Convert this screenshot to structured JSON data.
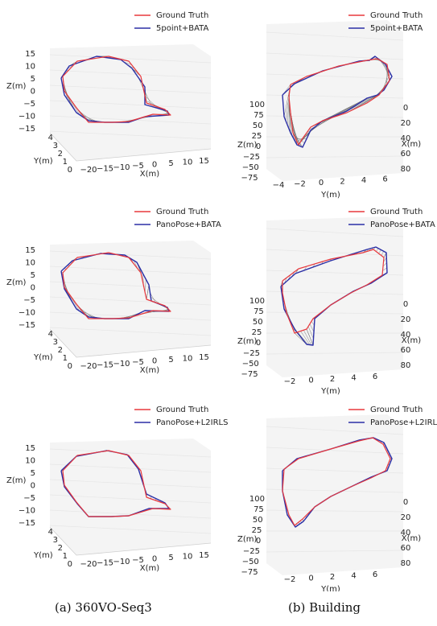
{
  "captions": {
    "left": "(a) 360VO-Seq3",
    "right": "(b) Building"
  },
  "colors": {
    "ground_truth": "#e8383d",
    "estimate": "#2b2fa6",
    "hatch": "#6e6e6e",
    "grid": "#e6e6e6",
    "pane": "#f4f4f4"
  },
  "chart_data": [
    {
      "type": "line",
      "view": "3d",
      "legend": [
        "Ground Truth",
        "5point+BATA"
      ],
      "axes": {
        "x_label": "X(m)",
        "y_label": "Y(m)",
        "z_label": "Z(m)",
        "x_ticks": [
          "−20",
          "−15",
          "−10",
          "−5",
          "0",
          "5",
          "10",
          "15"
        ],
        "y_ticks": [
          "0",
          "1",
          "2",
          "3",
          "4"
        ],
        "z_ticks": [
          "15",
          "10",
          "5",
          "0",
          "−5",
          "−10",
          "−15"
        ]
      }
    },
    {
      "type": "line",
      "view": "3d",
      "legend": [
        "Ground Truth",
        "5point+BATA"
      ],
      "axes": {
        "x_label": "X(m)",
        "y_label": "Y(m)",
        "z_label": "Z(m)",
        "x_ticks": [
          "0",
          "20",
          "40",
          "60",
          "80"
        ],
        "y_ticks": [
          "−4",
          "−2",
          "0",
          "2",
          "4",
          "6"
        ],
        "z_ticks": [
          "100",
          "75",
          "50",
          "25",
          "0",
          "−25",
          "−50",
          "−75"
        ]
      }
    },
    {
      "type": "line",
      "view": "3d",
      "legend": [
        "Ground Truth",
        "PanoPose+BATA"
      ],
      "axes": {
        "x_label": "X(m)",
        "y_label": "Y(m)",
        "z_label": "Z(m)",
        "x_ticks": [
          "−20",
          "−15",
          "−10",
          "−5",
          "0",
          "5",
          "10",
          "15"
        ],
        "y_ticks": [
          "0",
          "1",
          "2",
          "3",
          "4"
        ],
        "z_ticks": [
          "15",
          "10",
          "5",
          "0",
          "−5",
          "−10",
          "−15"
        ]
      }
    },
    {
      "type": "line",
      "view": "3d",
      "legend": [
        "Ground Truth",
        "PanoPose+BATA"
      ],
      "axes": {
        "x_label": "X(m)",
        "y_label": "Y(m)",
        "z_label": "Z(m)",
        "x_ticks": [
          "0",
          "20",
          "40",
          "60",
          "80"
        ],
        "y_ticks": [
          "−2",
          "0",
          "2",
          "4",
          "6"
        ],
        "z_ticks": [
          "100",
          "75",
          "50",
          "25",
          "0",
          "−25",
          "−50",
          "−75"
        ]
      }
    },
    {
      "type": "line",
      "view": "3d",
      "legend": [
        "Ground Truth",
        "PanoPose+L2IRLS"
      ],
      "axes": {
        "x_label": "X(m)",
        "y_label": "Y(m)",
        "z_label": "Z(m)",
        "x_ticks": [
          "−20",
          "−15",
          "−10",
          "−5",
          "0",
          "5",
          "10",
          "15"
        ],
        "y_ticks": [
          "0",
          "1",
          "2",
          "3",
          "4"
        ],
        "z_ticks": [
          "15",
          "10",
          "5",
          "0",
          "−5",
          "−10",
          "−15"
        ]
      }
    },
    {
      "type": "line",
      "view": "3d",
      "legend": [
        "Ground Truth",
        "PanoPose+L2IRLS"
      ],
      "axes": {
        "x_label": "X(m)",
        "y_label": "Y(m)",
        "z_label": "Z(m)",
        "x_ticks": [
          "0",
          "20",
          "40",
          "60",
          "80"
        ],
        "y_ticks": [
          "−2",
          "0",
          "2",
          "4",
          "6"
        ],
        "z_ticks": [
          "100",
          "75",
          "50",
          "25",
          "0",
          "−25",
          "−50",
          "−75"
        ]
      }
    }
  ]
}
